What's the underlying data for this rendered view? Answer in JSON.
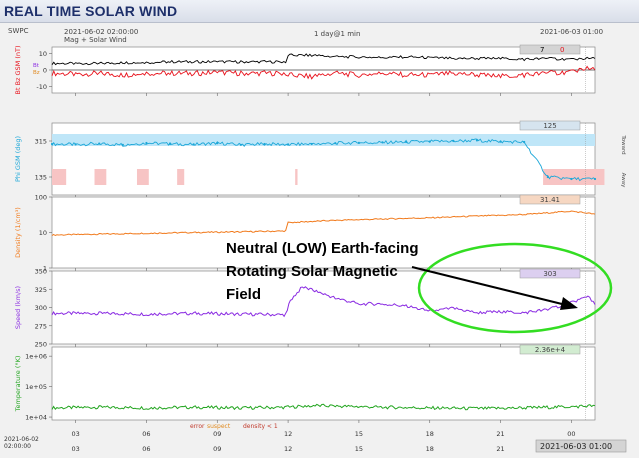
{
  "page": {
    "title": "REAL TIME SOLAR WIND"
  },
  "header": {
    "source": "SWPC",
    "start_time": "2021-06-02 02:00:00",
    "subtitle": "Mag + Solar Wind",
    "resolution": "1 day@1 min",
    "end_time": "2021-06-03 01:00"
  },
  "legend": {
    "error": "error",
    "suspect": "suspect",
    "density": "density < 1"
  },
  "footer": {
    "start_line1": "2021-06-02",
    "start_line2": "02:00:00",
    "end_time": "2021-06-03 01:00"
  },
  "annotation": {
    "lines": [
      "Neutral (LOW) Earth-facing",
      "Rotating Solar Magnetic",
      "Field"
    ]
  },
  "colors": {
    "bz": "#e8101a",
    "bt": "#000000",
    "phi": "#1ca7d8",
    "phi_band": "#bfe6f8",
    "phi_red": "#f7c4c4",
    "density": "#f17a1c",
    "speed": "#8a2be2",
    "temperature": "#22a51f",
    "annotation_ellipse": "#33dd22"
  },
  "chart_data": [
    {
      "type": "line",
      "id": "mag",
      "ylabel_parts": [
        "Bt",
        "Bz GSM (nT)"
      ],
      "aux_labels": [
        "Bt",
        "Bz"
      ],
      "yticks": [
        "10",
        "0",
        "-10"
      ],
      "ylim": [
        -14,
        14
      ],
      "latest_values": [
        "7",
        "0"
      ],
      "x": [
        0,
        1,
        2,
        3,
        4,
        5,
        6,
        7,
        8,
        9,
        9.9,
        10,
        11,
        12,
        13,
        14,
        15,
        16,
        17,
        18,
        19,
        20,
        21,
        22,
        22.5,
        23
      ],
      "series": [
        {
          "name": "Bt",
          "values": [
            4,
            4,
            4,
            4.5,
            4.5,
            5,
            5,
            5,
            5,
            5,
            5,
            9,
            9,
            8,
            8,
            7.5,
            8,
            7.5,
            7,
            7,
            7,
            6.5,
            7,
            6.5,
            7,
            7
          ]
        },
        {
          "name": "Bz",
          "values": [
            -2,
            -2.5,
            -2,
            -3,
            -2,
            -2,
            -2,
            -1.5,
            -2,
            -2,
            -2,
            -3,
            -4,
            -2,
            -3,
            -2,
            -3,
            -3,
            -2,
            -3,
            -4,
            -3,
            -2,
            -1,
            1,
            0
          ]
        }
      ]
    },
    {
      "type": "scatter",
      "id": "phi",
      "ylabel": "Phi GSM (deg)",
      "yticks": [
        "315",
        "135"
      ],
      "ylim": [
        45,
        405
      ],
      "side_labels": [
        "Toward",
        "Away"
      ],
      "latest_value": "125",
      "x": [
        0,
        1,
        2,
        3,
        4,
        5,
        6,
        7,
        8,
        9,
        10,
        11,
        12,
        13,
        14,
        15,
        16,
        17,
        18,
        19,
        20,
        21,
        22,
        23
      ],
      "values": [
        300,
        298,
        302,
        296,
        305,
        300,
        298,
        304,
        296,
        300,
        298,
        300,
        304,
        306,
        308,
        310,
        312,
        315,
        318,
        312,
        310,
        135,
        125,
        125
      ],
      "toward_intervals": [
        [
          0,
          0.6
        ],
        [
          1.8,
          2.3
        ],
        [
          3.6,
          4.1
        ],
        [
          5.3,
          5.6
        ],
        [
          10.3,
          10.4
        ],
        [
          20.8,
          23.4
        ]
      ]
    },
    {
      "type": "line",
      "id": "density",
      "ylabel": "Density (1/cm³)",
      "yticks": [
        "100",
        "10",
        "1"
      ],
      "ylim": [
        1,
        100
      ],
      "log": true,
      "latest_value": "31.41",
      "x": [
        0,
        2,
        4,
        6,
        8,
        9.9,
        10,
        12,
        14,
        16,
        18,
        20,
        22,
        23
      ],
      "values": [
        8.5,
        9,
        9.5,
        10,
        10.5,
        11,
        19,
        22,
        24,
        26,
        29,
        32,
        40,
        33
      ]
    },
    {
      "type": "line",
      "id": "speed",
      "ylabel": "Speed (km/s)",
      "yticks": [
        "350",
        "325",
        "300",
        "275",
        "250"
      ],
      "ylim": [
        250,
        350
      ],
      "latest_value": "303",
      "x": [
        0,
        2,
        4,
        6,
        8,
        9.9,
        10.1,
        10.6,
        11.2,
        12,
        13,
        14,
        15,
        16,
        17,
        18,
        19,
        20,
        21,
        22,
        22.7,
        23
      ],
      "values": [
        292,
        292,
        291,
        292,
        291,
        290,
        310,
        328,
        322,
        313,
        305,
        305,
        302,
        295,
        299,
        293,
        294,
        293,
        297,
        307,
        315,
        304
      ]
    },
    {
      "type": "line",
      "id": "temperature",
      "ylabel": "Temperature (°K)",
      "yticks": [
        "1e+06",
        "1e+05",
        "1e+04"
      ],
      "ylim": [
        8000,
        2000000
      ],
      "log": true,
      "latest_value": "2.36e+4",
      "x": [
        0,
        2,
        4,
        6,
        8,
        10,
        11,
        12,
        14,
        16,
        18,
        20,
        22,
        23
      ],
      "values": [
        20000,
        21000,
        20000,
        21000,
        20000,
        21000,
        24000,
        23000,
        21000,
        20000,
        19000,
        20000,
        22000,
        23600
      ]
    }
  ],
  "x_axis": {
    "day_ticks": [
      "03",
      "06",
      "09",
      "12",
      "15",
      "18",
      "21",
      "00"
    ]
  }
}
